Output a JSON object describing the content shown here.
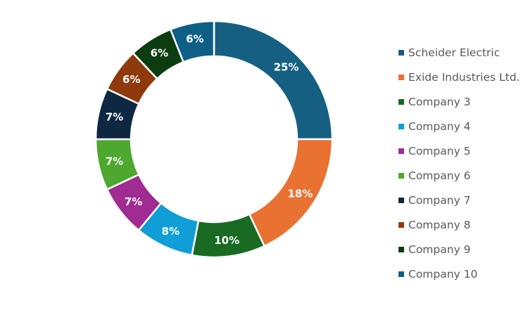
{
  "chart_data": {
    "type": "pie",
    "subtype": "donut",
    "title": "",
    "categories": [
      "Scheider Electric",
      "Exide Industries Ltd.",
      "Company 3",
      "Company 4",
      "Company 5",
      "Company 6",
      "Company 7",
      "Company 8",
      "Company 9",
      "Company 10"
    ],
    "values": [
      25,
      18,
      10,
      8,
      7,
      7,
      7,
      6,
      6,
      6
    ],
    "value_labels": [
      "25%",
      "18%",
      "10%",
      "8%",
      "7%",
      "7%",
      "7%",
      "6%",
      "6%",
      "6%"
    ],
    "colors": [
      "#156082",
      "#E97132",
      "#196B24",
      "#0F9ED5",
      "#A02B93",
      "#4EA72E",
      "#0E2841",
      "#8F3A0D",
      "#0B3D10",
      "#0E5F85"
    ],
    "legend_position": "right",
    "start_angle_deg": 0,
    "direction": "clockwise"
  }
}
